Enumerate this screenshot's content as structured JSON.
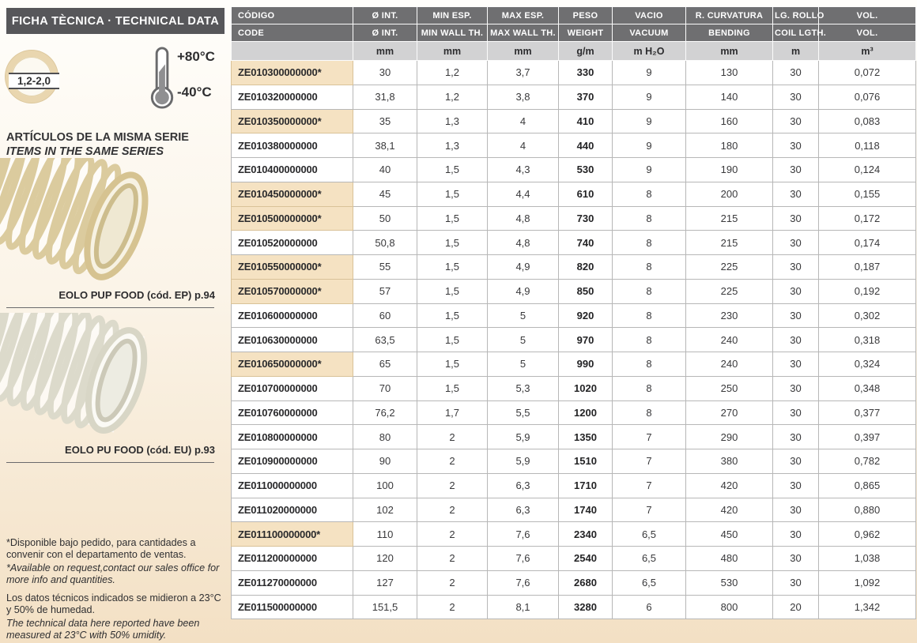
{
  "sidebar": {
    "title": "FICHA TÈCNICA · TECHNICAL DATA",
    "badge_label": "1,2-2,0",
    "temp_max": "+80°C",
    "temp_min": "-40°C",
    "series_title_es": "ARTÍCULOS DE LA MISMA SERIE",
    "series_title_en": "ITEMS IN THE SAME SERIES",
    "related": [
      {
        "caption": "EOLO PUP FOOD (cód. EP) p.94"
      },
      {
        "caption": "EOLO PU FOOD (cód. EU) p.93"
      }
    ],
    "notes": {
      "order_es": "*Disponible bajo pedido, para cantidades a convenir con el departamento de ventas.",
      "order_en": "*Available on request,contact our sales office for more info and quantities.",
      "measure_es": "Los datos técnicos indicados se midieron a 23°C y 50% de humedad.",
      "measure_en": "The technical data here reported have been measured at 23°C with 50% umidity."
    }
  },
  "table": {
    "header_row1": [
      "CÓDIGO",
      "Ø INT.",
      "MIN ESP.",
      "MAX ESP.",
      "PESO",
      "VACIO",
      "R. CURVATURA",
      "LG. ROLLO",
      "VOL."
    ],
    "header_row2": [
      "CODE",
      "Ø INT.",
      "MIN WALL TH.",
      "MAX WALL TH.",
      "WEIGHT",
      "VACUUM",
      "BENDING",
      "COIL LGTH.",
      "VOL."
    ],
    "units": [
      "",
      "mm",
      "mm",
      "mm",
      "g/m",
      "m H₂O",
      "mm",
      "m",
      "m³"
    ],
    "rows": [
      {
        "code": "ZE010300000000*",
        "highlight": true,
        "values": [
          "30",
          "1,2",
          "3,7",
          "330",
          "9",
          "130",
          "30",
          "0,072"
        ]
      },
      {
        "code": "ZE010320000000",
        "highlight": false,
        "values": [
          "31,8",
          "1,2",
          "3,8",
          "370",
          "9",
          "140",
          "30",
          "0,076"
        ]
      },
      {
        "code": "ZE010350000000*",
        "highlight": true,
        "values": [
          "35",
          "1,3",
          "4",
          "410",
          "9",
          "160",
          "30",
          "0,083"
        ]
      },
      {
        "code": "ZE010380000000",
        "highlight": false,
        "values": [
          "38,1",
          "1,3",
          "4",
          "440",
          "9",
          "180",
          "30",
          "0,118"
        ]
      },
      {
        "code": "ZE010400000000",
        "highlight": false,
        "values": [
          "40",
          "1,5",
          "4,3",
          "530",
          "9",
          "190",
          "30",
          "0,124"
        ]
      },
      {
        "code": "ZE010450000000*",
        "highlight": true,
        "values": [
          "45",
          "1,5",
          "4,4",
          "610",
          "8",
          "200",
          "30",
          "0,155"
        ]
      },
      {
        "code": "ZE010500000000*",
        "highlight": true,
        "values": [
          "50",
          "1,5",
          "4,8",
          "730",
          "8",
          "215",
          "30",
          "0,172"
        ]
      },
      {
        "code": "ZE010520000000",
        "highlight": false,
        "values": [
          "50,8",
          "1,5",
          "4,8",
          "740",
          "8",
          "215",
          "30",
          "0,174"
        ]
      },
      {
        "code": "ZE010550000000*",
        "highlight": true,
        "values": [
          "55",
          "1,5",
          "4,9",
          "820",
          "8",
          "225",
          "30",
          "0,187"
        ]
      },
      {
        "code": "ZE010570000000*",
        "highlight": true,
        "values": [
          "57",
          "1,5",
          "4,9",
          "850",
          "8",
          "225",
          "30",
          "0,192"
        ]
      },
      {
        "code": "ZE010600000000",
        "highlight": false,
        "values": [
          "60",
          "1,5",
          "5",
          "920",
          "8",
          "230",
          "30",
          "0,302"
        ]
      },
      {
        "code": "ZE010630000000",
        "highlight": false,
        "values": [
          "63,5",
          "1,5",
          "5",
          "970",
          "8",
          "240",
          "30",
          "0,318"
        ]
      },
      {
        "code": "ZE010650000000*",
        "highlight": true,
        "values": [
          "65",
          "1,5",
          "5",
          "990",
          "8",
          "240",
          "30",
          "0,324"
        ]
      },
      {
        "code": "ZE010700000000",
        "highlight": false,
        "values": [
          "70",
          "1,5",
          "5,3",
          "1020",
          "8",
          "250",
          "30",
          "0,348"
        ]
      },
      {
        "code": "ZE010760000000",
        "highlight": false,
        "values": [
          "76,2",
          "1,7",
          "5,5",
          "1200",
          "8",
          "270",
          "30",
          "0,377"
        ]
      },
      {
        "code": "ZE010800000000",
        "highlight": false,
        "values": [
          "80",
          "2",
          "5,9",
          "1350",
          "7",
          "290",
          "30",
          "0,397"
        ]
      },
      {
        "code": "ZE010900000000",
        "highlight": false,
        "values": [
          "90",
          "2",
          "5,9",
          "1510",
          "7",
          "380",
          "30",
          "0,782"
        ]
      },
      {
        "code": "ZE011000000000",
        "highlight": false,
        "values": [
          "100",
          "2",
          "6,3",
          "1710",
          "7",
          "420",
          "30",
          "0,865"
        ]
      },
      {
        "code": "ZE011020000000",
        "highlight": false,
        "values": [
          "102",
          "2",
          "6,3",
          "1740",
          "7",
          "420",
          "30",
          "0,880"
        ]
      },
      {
        "code": "ZE011100000000*",
        "highlight": true,
        "values": [
          "110",
          "2",
          "7,6",
          "2340",
          "6,5",
          "450",
          "30",
          "0,962"
        ]
      },
      {
        "code": "ZE011200000000",
        "highlight": false,
        "values": [
          "120",
          "2",
          "7,6",
          "2540",
          "6,5",
          "480",
          "30",
          "1,038"
        ]
      },
      {
        "code": "ZE011270000000",
        "highlight": false,
        "values": [
          "127",
          "2",
          "7,6",
          "2680",
          "6,5",
          "530",
          "30",
          "1,092"
        ]
      },
      {
        "code": "ZE011500000000",
        "highlight": false,
        "values": [
          "151,5",
          "2",
          "8,1",
          "3280",
          "6",
          "800",
          "20",
          "1,342"
        ]
      }
    ]
  },
  "colors": {
    "title_bar": "#57575a",
    "table_header": "#6f6f71",
    "units_row": "#d2d2d3",
    "row_highlight": "#f5e2c2",
    "page_bottom": "#f3e0c4",
    "text_dark": "#2b2b2d"
  }
}
